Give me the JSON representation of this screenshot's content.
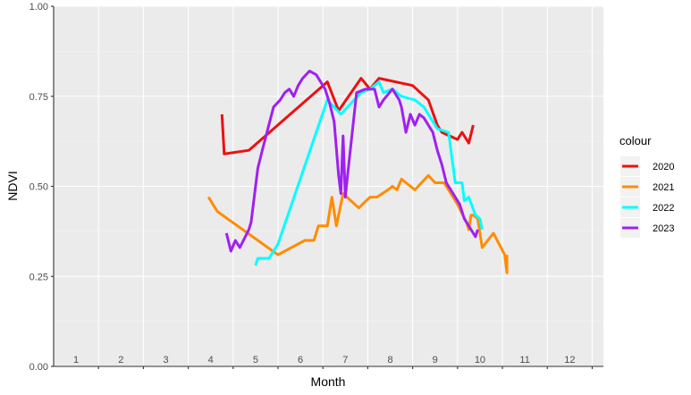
{
  "chart_data": {
    "type": "line",
    "title": "",
    "xlabel": "Month",
    "ylabel": "NDVI",
    "xlim": [
      0.5,
      12.75
    ],
    "ylim": [
      0,
      1
    ],
    "y_ticks": [
      0,
      0.25,
      0.5,
      0.75,
      1
    ],
    "y_tick_labels": [
      "0.00",
      "0.25",
      "0.50",
      "0.75",
      "1.00"
    ],
    "month_labels": [
      "1",
      "2",
      "3",
      "4",
      "5",
      "6",
      "7",
      "8",
      "9",
      "10",
      "11",
      "12"
    ],
    "grid": true,
    "legend": {
      "title": "colour",
      "position": "right"
    },
    "series": [
      {
        "name": "2020",
        "color": "#EE1010",
        "points": [
          [
            4.25,
            0.7
          ],
          [
            4.3,
            0.59
          ],
          [
            4.85,
            0.6
          ],
          [
            6.6,
            0.79
          ],
          [
            6.85,
            0.71
          ],
          [
            7.35,
            0.8
          ],
          [
            7.55,
            0.77
          ],
          [
            7.75,
            0.8
          ],
          [
            8.5,
            0.78
          ],
          [
            8.85,
            0.74
          ],
          [
            9.05,
            0.67
          ],
          [
            9.15,
            0.65
          ],
          [
            9.5,
            0.63
          ],
          [
            9.6,
            0.65
          ],
          [
            9.75,
            0.62
          ],
          [
            9.85,
            0.67
          ]
        ]
      },
      {
        "name": "2021",
        "color": "#FF8C00",
        "points": [
          [
            3.95,
            0.47
          ],
          [
            4.1,
            0.44
          ],
          [
            4.15,
            0.43
          ],
          [
            5.5,
            0.31
          ],
          [
            6.1,
            0.35
          ],
          [
            6.3,
            0.35
          ],
          [
            6.4,
            0.39
          ],
          [
            6.6,
            0.39
          ],
          [
            6.7,
            0.47
          ],
          [
            6.8,
            0.39
          ],
          [
            6.95,
            0.48
          ],
          [
            7.3,
            0.44
          ],
          [
            7.55,
            0.47
          ],
          [
            7.7,
            0.47
          ],
          [
            7.95,
            0.49
          ],
          [
            8.05,
            0.5
          ],
          [
            8.15,
            0.49
          ],
          [
            8.25,
            0.52
          ],
          [
            8.55,
            0.49
          ],
          [
            8.85,
            0.53
          ],
          [
            9.0,
            0.51
          ],
          [
            9.2,
            0.51
          ],
          [
            9.5,
            0.45
          ],
          [
            9.7,
            0.4
          ],
          [
            9.75,
            0.38
          ],
          [
            9.8,
            0.42
          ],
          [
            9.85,
            0.42
          ],
          [
            9.95,
            0.41
          ],
          [
            10.05,
            0.33
          ],
          [
            10.3,
            0.37
          ],
          [
            10.55,
            0.31
          ],
          [
            10.6,
            0.26
          ],
          [
            10.6,
            0.31
          ]
        ]
      },
      {
        "name": "2022",
        "color": "#00FFFF",
        "points": [
          [
            5.0,
            0.28
          ],
          [
            5.05,
            0.3
          ],
          [
            5.15,
            0.3
          ],
          [
            5.3,
            0.3
          ],
          [
            5.5,
            0.34
          ],
          [
            6.6,
            0.74
          ],
          [
            6.9,
            0.7
          ],
          [
            7.35,
            0.76
          ],
          [
            7.55,
            0.77
          ],
          [
            7.75,
            0.79
          ],
          [
            7.85,
            0.76
          ],
          [
            8.05,
            0.77
          ],
          [
            8.25,
            0.75
          ],
          [
            8.55,
            0.74
          ],
          [
            8.75,
            0.72
          ],
          [
            8.95,
            0.68
          ],
          [
            9.05,
            0.66
          ],
          [
            9.3,
            0.65
          ],
          [
            9.45,
            0.51
          ],
          [
            9.6,
            0.51
          ],
          [
            9.65,
            0.46
          ],
          [
            9.75,
            0.47
          ],
          [
            9.9,
            0.42
          ],
          [
            10.0,
            0.41
          ],
          [
            10.05,
            0.38
          ]
        ]
      },
      {
        "name": "2023",
        "color": "#A020F0",
        "points": [
          [
            4.35,
            0.37
          ],
          [
            4.45,
            0.32
          ],
          [
            4.55,
            0.35
          ],
          [
            4.65,
            0.33
          ],
          [
            4.85,
            0.38
          ],
          [
            4.9,
            0.4
          ],
          [
            5.05,
            0.55
          ],
          [
            5.15,
            0.6
          ],
          [
            5.4,
            0.72
          ],
          [
            5.55,
            0.74
          ],
          [
            5.65,
            0.76
          ],
          [
            5.75,
            0.77
          ],
          [
            5.85,
            0.75
          ],
          [
            5.95,
            0.78
          ],
          [
            6.05,
            0.8
          ],
          [
            6.2,
            0.82
          ],
          [
            6.35,
            0.81
          ],
          [
            6.55,
            0.77
          ],
          [
            6.65,
            0.73
          ],
          [
            6.75,
            0.68
          ],
          [
            6.85,
            0.53
          ],
          [
            6.9,
            0.48
          ],
          [
            6.95,
            0.64
          ],
          [
            7.0,
            0.47
          ],
          [
            7.05,
            0.53
          ],
          [
            7.25,
            0.76
          ],
          [
            7.45,
            0.77
          ],
          [
            7.65,
            0.77
          ],
          [
            7.75,
            0.72
          ],
          [
            7.85,
            0.74
          ],
          [
            8.05,
            0.77
          ],
          [
            8.2,
            0.74
          ],
          [
            8.25,
            0.72
          ],
          [
            8.35,
            0.65
          ],
          [
            8.45,
            0.7
          ],
          [
            8.55,
            0.67
          ],
          [
            8.65,
            0.7
          ],
          [
            8.75,
            0.69
          ],
          [
            8.85,
            0.67
          ],
          [
            8.95,
            0.65
          ],
          [
            9.05,
            0.6
          ],
          [
            9.15,
            0.56
          ],
          [
            9.25,
            0.51
          ],
          [
            9.4,
            0.48
          ],
          [
            9.55,
            0.45
          ],
          [
            9.65,
            0.41
          ],
          [
            9.75,
            0.39
          ],
          [
            9.9,
            0.36
          ],
          [
            9.95,
            0.38
          ]
        ]
      }
    ]
  }
}
